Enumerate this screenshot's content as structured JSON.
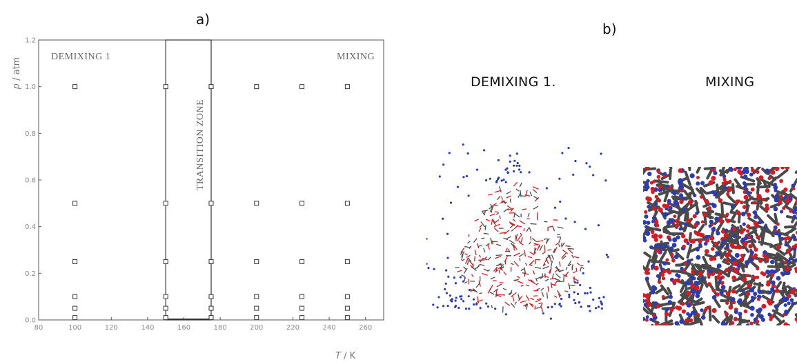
{
  "panel_a_label": "a)",
  "panel_b_label": "b)",
  "snapshot_titles": {
    "demixing": "DEMIXING 1.",
    "mixing": "MIXING"
  },
  "colors": {
    "blue_molecule": "#2b3bb5",
    "red_molecule": "#d81a22",
    "gray_molecule": "#4a4a4a",
    "axis": "#555555",
    "tick_label": "#8a8a8a"
  },
  "chart_data": {
    "type": "scatter",
    "xlabel_var": "T",
    "xlabel_unit": " / K",
    "ylabel_var": "p",
    "ylabel_unit": " / atm",
    "xlim": [
      80,
      270
    ],
    "ylim": [
      0.0,
      1.2
    ],
    "xticks": [
      80,
      100,
      120,
      140,
      160,
      180,
      200,
      220,
      240,
      260
    ],
    "yticks": [
      0.0,
      0.2,
      0.4,
      0.6,
      0.8,
      1.0,
      1.2
    ],
    "yticklabels": [
      "0.0",
      "0.2",
      "0.4",
      "0.6",
      "0.8",
      "1.0",
      "1.2"
    ],
    "grid": false,
    "marker": "open-square",
    "points": [
      {
        "x": 100,
        "y": 0.01
      },
      {
        "x": 100,
        "y": 0.05
      },
      {
        "x": 100,
        "y": 0.1
      },
      {
        "x": 100,
        "y": 0.25
      },
      {
        "x": 100,
        "y": 0.5
      },
      {
        "x": 100,
        "y": 1.0
      },
      {
        "x": 150,
        "y": 0.01
      },
      {
        "x": 150,
        "y": 0.05
      },
      {
        "x": 150,
        "y": 0.1
      },
      {
        "x": 150,
        "y": 0.25
      },
      {
        "x": 150,
        "y": 0.5
      },
      {
        "x": 150,
        "y": 1.0
      },
      {
        "x": 175,
        "y": 0.01
      },
      {
        "x": 175,
        "y": 0.05
      },
      {
        "x": 175,
        "y": 0.1
      },
      {
        "x": 175,
        "y": 0.25
      },
      {
        "x": 175,
        "y": 0.5
      },
      {
        "x": 175,
        "y": 1.0
      },
      {
        "x": 200,
        "y": 0.01
      },
      {
        "x": 200,
        "y": 0.05
      },
      {
        "x": 200,
        "y": 0.1
      },
      {
        "x": 200,
        "y": 0.25
      },
      {
        "x": 200,
        "y": 0.5
      },
      {
        "x": 200,
        "y": 1.0
      },
      {
        "x": 225,
        "y": 0.01
      },
      {
        "x": 225,
        "y": 0.05
      },
      {
        "x": 225,
        "y": 0.1
      },
      {
        "x": 225,
        "y": 0.25
      },
      {
        "x": 225,
        "y": 0.5
      },
      {
        "x": 225,
        "y": 1.0
      },
      {
        "x": 250,
        "y": 0.01
      },
      {
        "x": 250,
        "y": 0.05
      },
      {
        "x": 250,
        "y": 0.1
      },
      {
        "x": 250,
        "y": 0.25
      },
      {
        "x": 250,
        "y": 0.5
      },
      {
        "x": 250,
        "y": 1.0
      }
    ],
    "transition_zone": {
      "x_start": 150,
      "x_end": 175,
      "label": "TRANSITION ZONE"
    },
    "region_labels": {
      "left": "DEMIXING 1",
      "right": "MIXING"
    }
  }
}
